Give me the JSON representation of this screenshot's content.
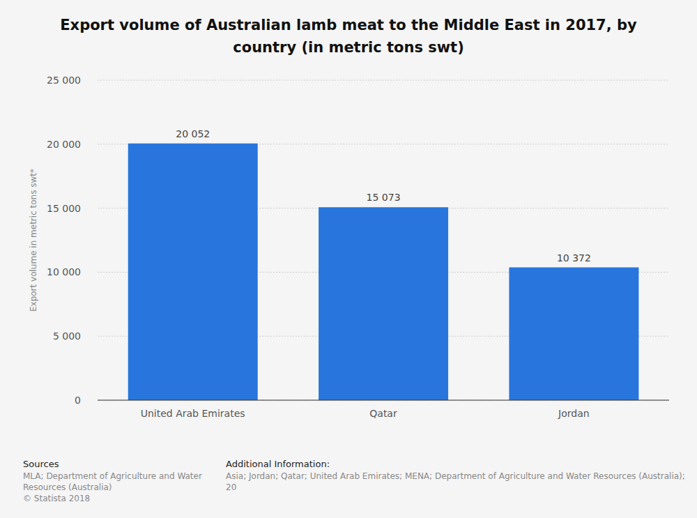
{
  "chart_data": {
    "type": "bar",
    "title": "Export volume of Australian lamb meat to the Middle East in 2017, by country (in metric tons swt)",
    "y_label": "Export volume in metric tons swt*",
    "categories": [
      "United Arab Emirates",
      "Qatar",
      "Jordan"
    ],
    "values": [
      20052,
      15073,
      10372
    ],
    "value_labels": [
      "20 052",
      "15 073",
      "10 372"
    ],
    "color": "#2876dd",
    "ylim": [
      0,
      25000
    ],
    "yticks": [
      {
        "value": 0,
        "label": "0"
      },
      {
        "value": 5000,
        "label": "5 000"
      },
      {
        "value": 10000,
        "label": "10 000"
      },
      {
        "value": 15000,
        "label": "15 000"
      },
      {
        "value": 20000,
        "label": "20 000"
      },
      {
        "value": 25000,
        "label": "25 000"
      }
    ],
    "grid": true,
    "data_labels": true,
    "sources_title": "Sources",
    "sources": [
      "MLA; Department of Agriculture and Water Resources (Australia)",
      "© Statista 2018"
    ],
    "additional_info_title": "Additional Information:",
    "additional_info": "Asia; Jordan; Qatar; United Arab Emirates; MENA; Department of Agriculture and Water Resources (Australia); 20"
  }
}
